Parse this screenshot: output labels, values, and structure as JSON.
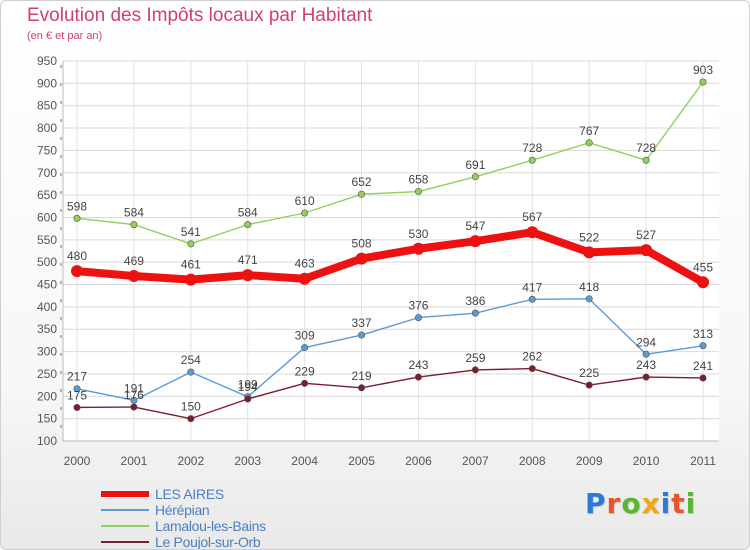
{
  "header": {
    "title": "Evolution des Impôts locaux par Habitant",
    "subtitle": "(en € et par an)"
  },
  "logo": {
    "text": "Proxiti",
    "letter_colors": [
      "#2a7bd6",
      "#e8542b",
      "#5cb531",
      "#f0a61a",
      "#2a7bd6",
      "#e8542b",
      "#5cb531"
    ]
  },
  "chart_data": {
    "type": "line",
    "title": "Evolution des Impôts locaux par Habitant",
    "subtitle": "(en € et par an)",
    "xlabel": "",
    "ylabel": "",
    "categories": [
      "2000",
      "2001",
      "2002",
      "2003",
      "2004",
      "2005",
      "2006",
      "2007",
      "2008",
      "2009",
      "2010",
      "2011"
    ],
    "ylim": [
      100,
      950
    ],
    "yticks": [
      100,
      150,
      200,
      250,
      300,
      350,
      400,
      450,
      500,
      550,
      600,
      650,
      700,
      750,
      800,
      850,
      900,
      950
    ],
    "grid": true,
    "legend_position": "bottom-left",
    "series": [
      {
        "name": "Lamalou-les-Bains",
        "color": "#8fd15a",
        "values": [
          598,
          584,
          541,
          584,
          610,
          652,
          658,
          691,
          728,
          767,
          728,
          903
        ]
      },
      {
        "name": "Hérépian",
        "color": "#5b9bd5",
        "values": [
          217,
          191,
          254,
          199,
          309,
          337,
          376,
          386,
          417,
          418,
          294,
          313
        ],
        "labels": [
          "217",
          "191",
          "254",
          "199",
          "309",
          "337",
          "376",
          "386",
          "417",
          "418",
          "294",
          "313"
        ]
      },
      {
        "name": "Le Poujol-sur-Orb",
        "color": "#7b1e2c",
        "values": [
          175,
          176,
          150,
          194,
          229,
          219,
          243,
          259,
          262,
          225,
          243,
          241
        ],
        "labels": [
          "175",
          "176",
          "150",
          "194",
          "229",
          "219",
          "243",
          "259",
          "262",
          "225",
          "243",
          "241"
        ]
      },
      {
        "name": "LES AIRES",
        "color": "#ee1111",
        "emphasis": true,
        "values": [
          480,
          469,
          461,
          471,
          463,
          508,
          530,
          547,
          567,
          522,
          527,
          455
        ]
      }
    ]
  },
  "legend": {
    "items": [
      {
        "name": "LES AIRES",
        "color": "#ee1111",
        "thick": true
      },
      {
        "name": "Hérépian",
        "color": "#5b9bd5",
        "thick": false
      },
      {
        "name": "Lamalou-les-Bains",
        "color": "#8fd15a",
        "thick": false
      },
      {
        "name": "Le Poujol-sur-Orb",
        "color": "#7b1e2c",
        "thick": false
      }
    ]
  }
}
